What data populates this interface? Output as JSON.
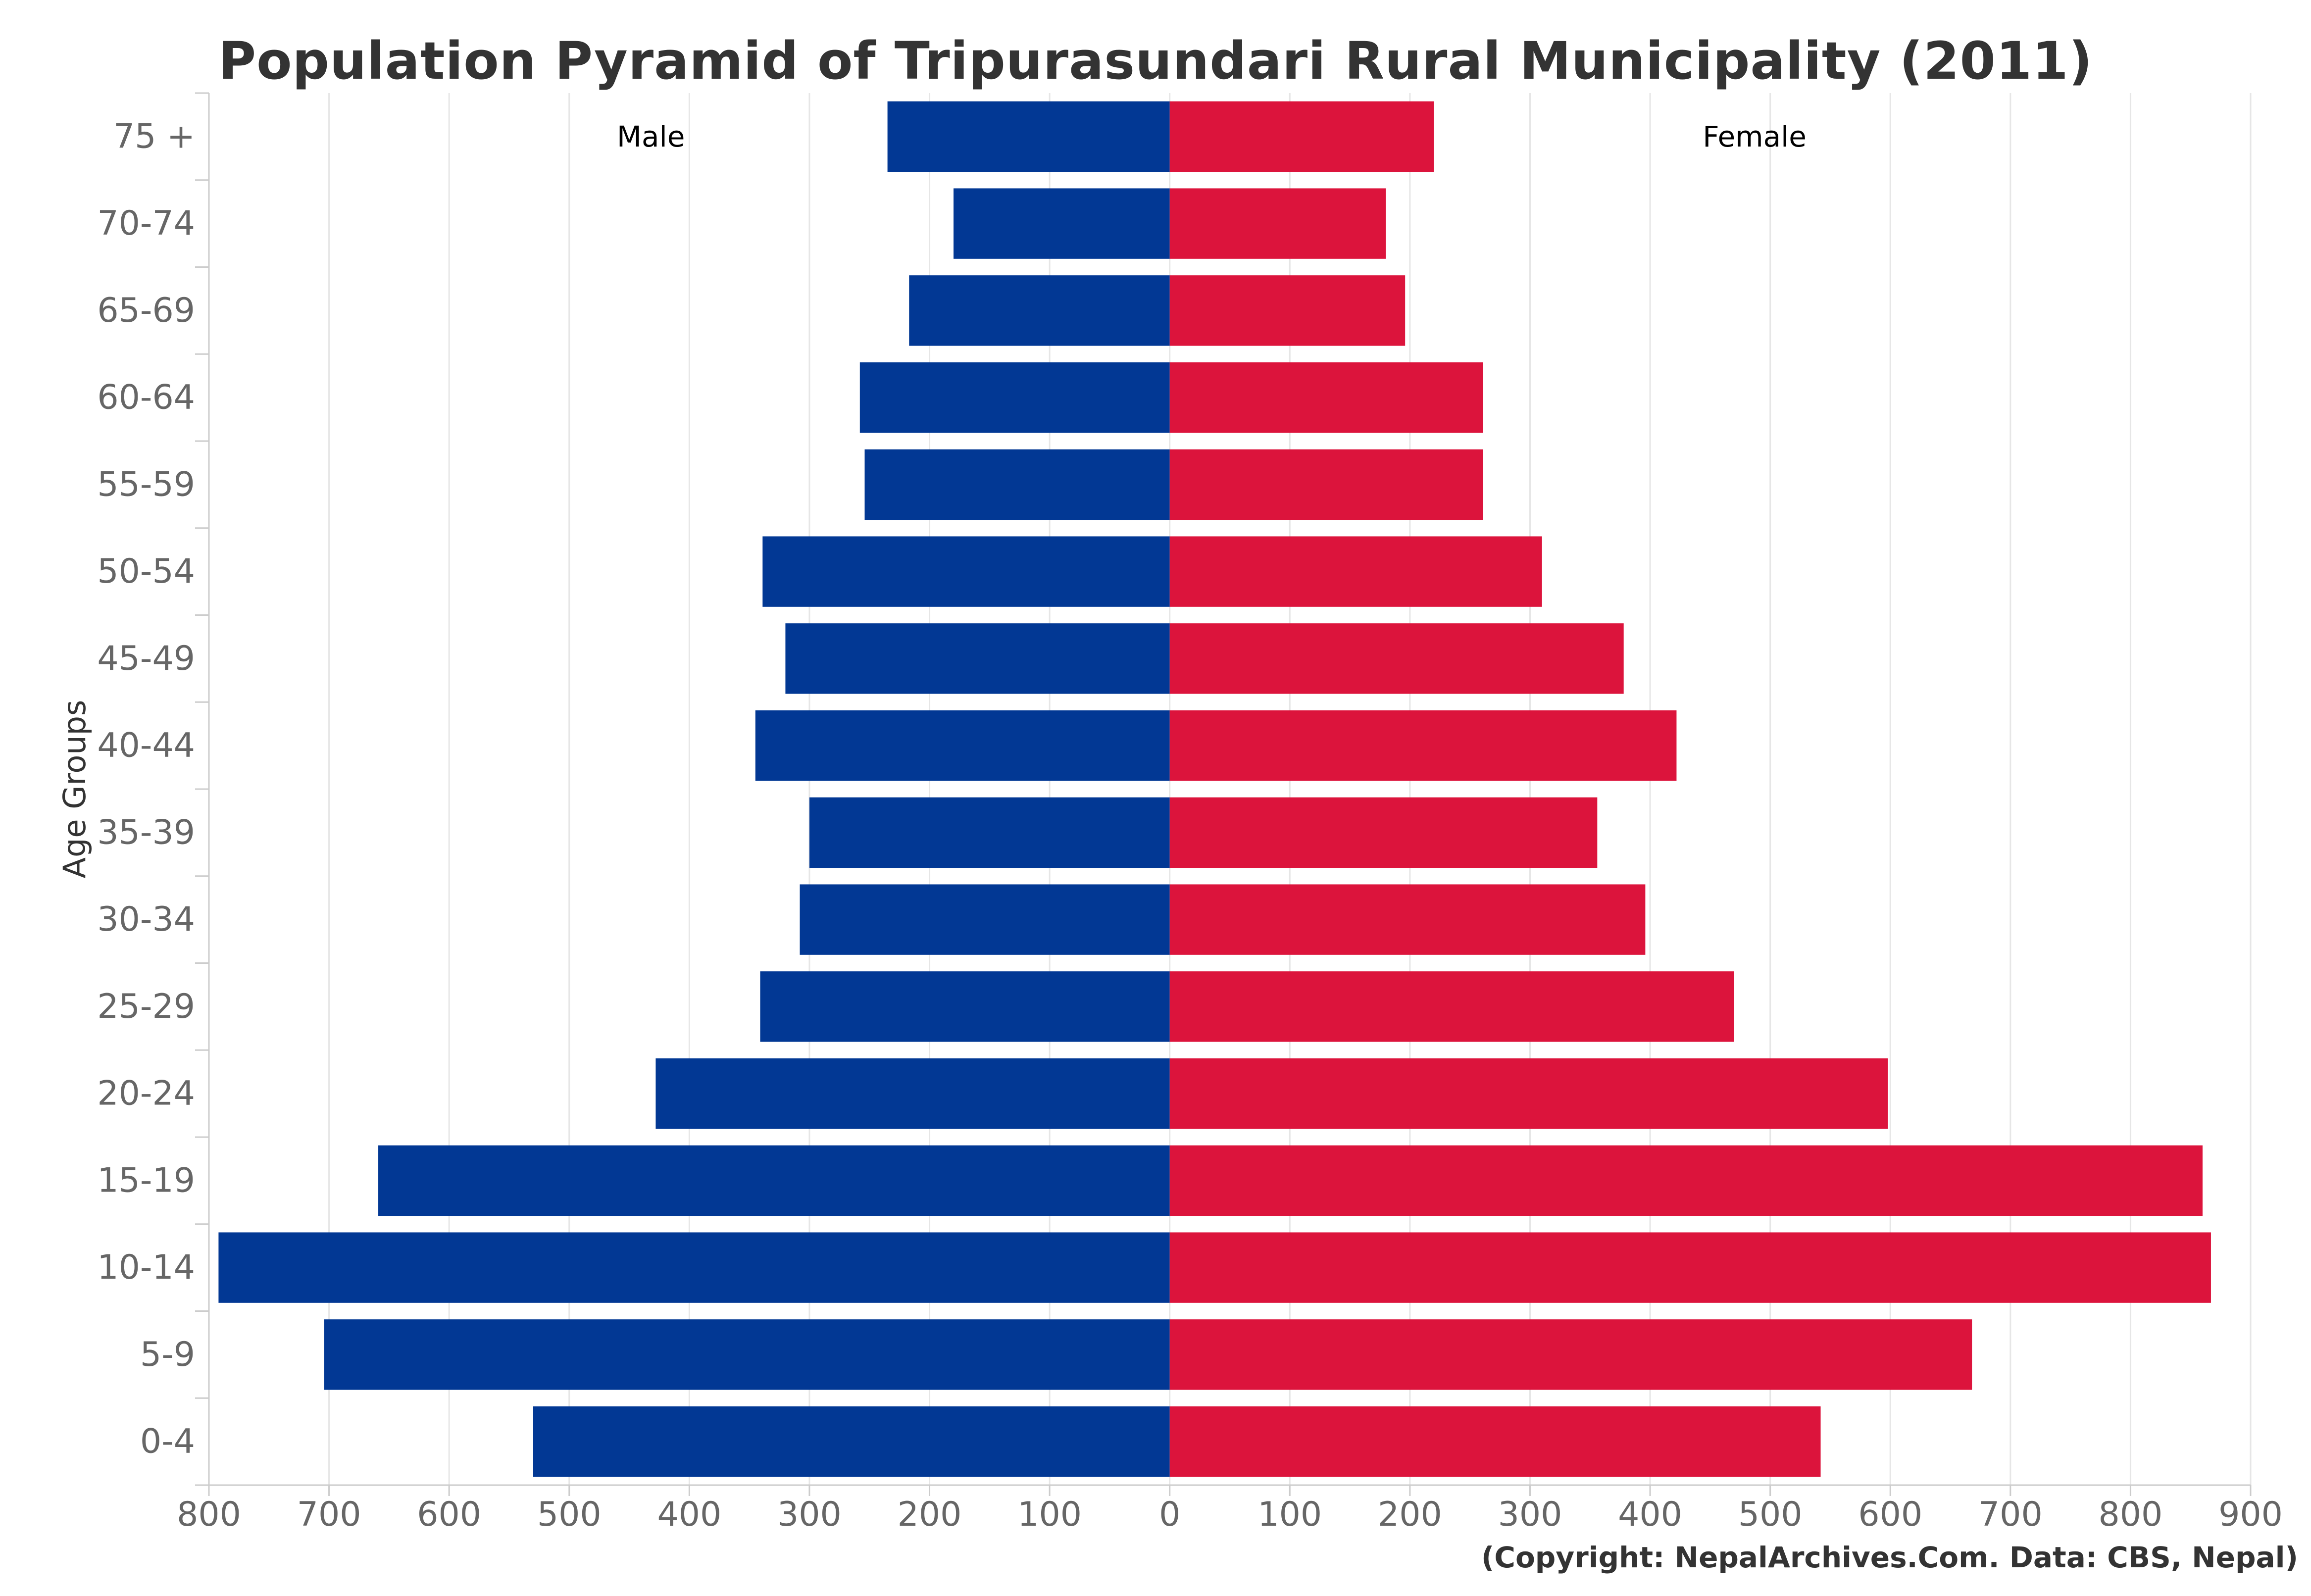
{
  "chart_data": {
    "type": "bar",
    "orientation": "horizontal",
    "layout": "population-pyramid",
    "title": "Population Pyramid of Tripurasundari Rural Municipality (2011)",
    "ylabel": "Age Groups",
    "xlabel": "",
    "credit": "(Copyright: NepalArchives.Com. Data: CBS, Nepal)",
    "categories": [
      "75 +",
      "70-74",
      "65-69",
      "60-64",
      "55-59",
      "50-54",
      "45-49",
      "40-44",
      "35-39",
      "30-34",
      "25-29",
      "20-24",
      "15-19",
      "10-14",
      "5-9",
      "0-4"
    ],
    "xlim": [
      -800,
      900
    ],
    "x_ticks": [
      -800,
      -700,
      -600,
      -500,
      -400,
      -300,
      -200,
      -100,
      0,
      100,
      200,
      300,
      400,
      500,
      600,
      700,
      800,
      900
    ],
    "x_tick_labels": [
      "800",
      "700",
      "600",
      "500",
      "400",
      "300",
      "200",
      "100",
      "0",
      "100",
      "200",
      "300",
      "400",
      "500",
      "600",
      "700",
      "800",
      "900"
    ],
    "grid": true,
    "series": [
      {
        "name": "Male",
        "color": "#023894",
        "values": [
          235,
          180,
          217,
          258,
          254,
          339,
          320,
          345,
          300,
          308,
          341,
          428,
          659,
          792,
          704,
          530
        ]
      },
      {
        "name": "Female",
        "color": "#dc143c",
        "values": [
          220,
          180,
          196,
          261,
          261,
          310,
          378,
          422,
          356,
          396,
          470,
          598,
          860,
          867,
          668,
          542
        ]
      }
    ]
  }
}
